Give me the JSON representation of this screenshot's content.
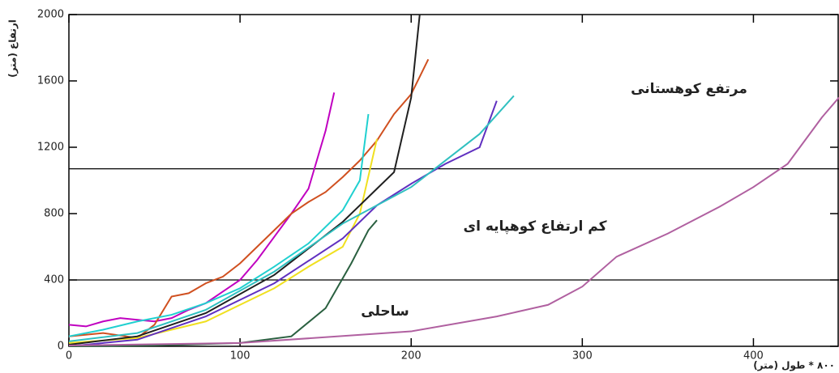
{
  "chart_data": {
    "type": "line",
    "y_label": "ارتفاع (متر)",
    "x_label": "(متر) ۸۰۰ * طول",
    "annotations": [
      "مرتفع کوهستانی",
      "کم ارتفاع کوهپایه ای",
      "ساحلی"
    ],
    "hlines": [
      1070,
      400
    ],
    "xlim": [
      0,
      450
    ],
    "ylim": [
      0,
      2000
    ],
    "xticks": [
      0,
      100,
      200,
      300,
      400
    ],
    "yticks": [
      0,
      400,
      800,
      1200,
      1600,
      2000
    ],
    "series": [
      {
        "color": "#c000c0",
        "x": [
          0,
          10,
          20,
          30,
          40,
          50,
          60,
          70,
          80,
          90,
          100,
          110,
          120,
          130,
          140,
          150,
          155
        ],
        "values": [
          130,
          120,
          150,
          170,
          160,
          150,
          170,
          220,
          260,
          330,
          400,
          520,
          660,
          800,
          950,
          1300,
          1530
        ]
      },
      {
        "color": "#d05020",
        "x": [
          0,
          20,
          40,
          50,
          60,
          70,
          80,
          90,
          100,
          110,
          120,
          130,
          140,
          150,
          160,
          170,
          180,
          190,
          200,
          210
        ],
        "values": [
          60,
          80,
          50,
          130,
          300,
          320,
          380,
          420,
          500,
          600,
          700,
          800,
          870,
          930,
          1020,
          1120,
          1240,
          1400,
          1520,
          1730
        ]
      },
      {
        "color": "#20d0d0",
        "x": [
          0,
          20,
          40,
          60,
          80,
          100,
          120,
          140,
          160,
          170,
          175
        ],
        "values": [
          60,
          100,
          150,
          190,
          260,
          350,
          480,
          620,
          820,
          1000,
          1400
        ]
      },
      {
        "color": "#f0e020",
        "x": [
          0,
          40,
          80,
          120,
          140,
          160,
          170,
          180
        ],
        "values": [
          20,
          50,
          150,
          350,
          480,
          600,
          800,
          1250
        ]
      },
      {
        "color": "#202020",
        "x": [
          0,
          40,
          80,
          120,
          160,
          180,
          190,
          200,
          203,
          205
        ],
        "values": [
          10,
          60,
          200,
          430,
          750,
          950,
          1050,
          1500,
          1800,
          2000
        ]
      },
      {
        "color": "#6030c0",
        "x": [
          0,
          40,
          80,
          120,
          160,
          180,
          200,
          220,
          240,
          250
        ],
        "values": [
          0,
          40,
          180,
          380,
          650,
          850,
          980,
          1100,
          1200,
          1480
        ]
      },
      {
        "color": "#30c0c0",
        "x": [
          0,
          40,
          80,
          120,
          160,
          200,
          220,
          240,
          260
        ],
        "values": [
          30,
          80,
          220,
          450,
          740,
          960,
          1120,
          1280,
          1510
        ]
      },
      {
        "color": "#2a6040",
        "x": [
          0,
          50,
          100,
          130,
          150,
          165,
          175,
          180
        ],
        "values": [
          0,
          5,
          20,
          60,
          230,
          500,
          700,
          760
        ]
      },
      {
        "color": "#b060a0",
        "x": [
          0,
          100,
          200,
          250,
          280,
          300,
          320,
          350,
          380,
          400,
          420,
          440,
          450
        ],
        "values": [
          5,
          20,
          90,
          180,
          250,
          360,
          540,
          680,
          840,
          960,
          1100,
          1380,
          1500
        ]
      }
    ]
  }
}
